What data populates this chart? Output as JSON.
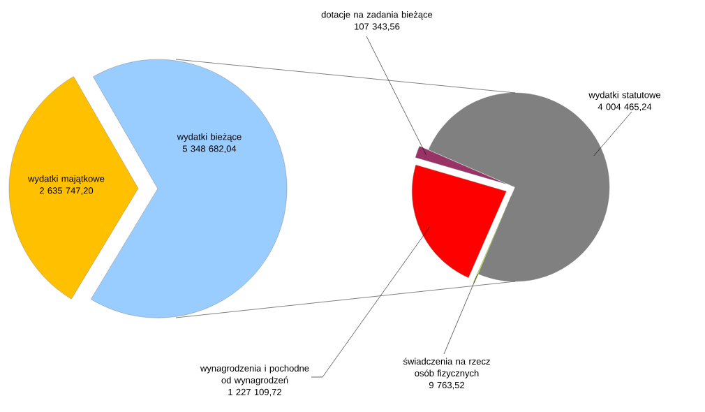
{
  "chart_data": [
    {
      "type": "pie",
      "categories": [
        "wydatki majątkowe",
        "wydatki bieżące"
      ],
      "values": [
        2635747.2,
        5348682.04
      ],
      "colors": [
        "#ffc000",
        "#99ccff"
      ],
      "value_labels": [
        "2 635 747,20",
        "5 348 682,04"
      ]
    },
    {
      "type": "pie",
      "categories": [
        "wydatki statutowe",
        "dotacje na zadania bieżące",
        "wynagrodzenia i pochodne od wynagrodzeń",
        "świadczenia na rzecz osób fizycznych"
      ],
      "values": [
        4004465.24,
        107343.56,
        1227109.72,
        9763.52
      ],
      "colors": [
        "#808080",
        "#993366",
        "#ff0000",
        "#ccff33"
      ],
      "value_labels": [
        "4 004 465,24",
        "107 343,56",
        "1 227 109,72",
        "9 763,52"
      ]
    }
  ]
}
